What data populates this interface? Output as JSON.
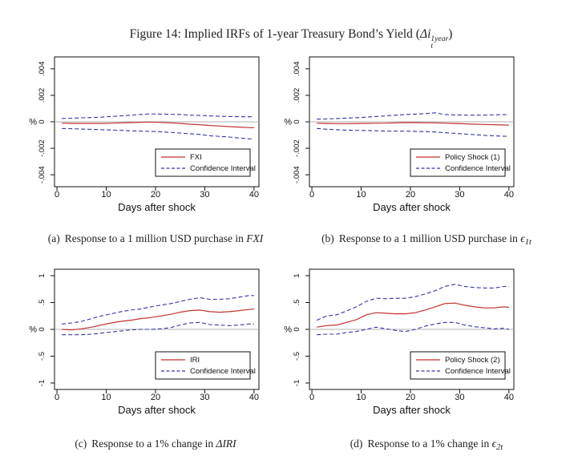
{
  "title": {
    "prefix": "Figure 14: Implied IRFs of 1-year Treasury Bond’s Yield (",
    "var": "Δi",
    "sup": "1year",
    "sub": "t",
    "suffix": ")"
  },
  "colors": {
    "irf": "#c23232",
    "ci": "#3434a8",
    "zero_line": "#b0b0b0",
    "frame": "#111111"
  },
  "captions": [
    {
      "tag": "(a)",
      "text": "Response to a 1 million USD purchase in",
      "math": "FXI",
      "math_sub": ""
    },
    {
      "tag": "(b)",
      "text": "Response to a 1 million USD purchase in",
      "math": "ϵ",
      "math_sub": "1t"
    },
    {
      "tag": "(c)",
      "text": "Response to a 1% change in",
      "math": "ΔIRI",
      "math_sub": ""
    },
    {
      "tag": "(d)",
      "text": "Response to a 1% change in",
      "math": "ϵ",
      "math_sub": "2t"
    }
  ],
  "chart_data": [
    {
      "id": "a",
      "type": "line",
      "xlabel": "Days after shock",
      "ytitle": "%",
      "xlim": [
        -0.5,
        41
      ],
      "ylim": [
        -0.0049,
        0.0049
      ],
      "xticks": [
        {
          "v": 0,
          "l": "0"
        },
        {
          "v": 10,
          "l": "10"
        },
        {
          "v": 20,
          "l": "20"
        },
        {
          "v": 30,
          "l": "30"
        },
        {
          "v": 40,
          "l": "40"
        }
      ],
      "yticks": [
        {
          "v": 0.004,
          "l": ".004"
        },
        {
          "v": 0.002,
          "l": ".002"
        },
        {
          "v": 0,
          "l": "0"
        },
        {
          "v": -0.002,
          "l": "-.002"
        },
        {
          "v": -0.004,
          "l": "-.004"
        }
      ],
      "zero_line": true,
      "x": [
        1,
        3,
        5,
        7,
        9,
        11,
        13,
        15,
        17,
        19,
        21,
        23,
        25,
        27,
        29,
        31,
        33,
        35,
        37,
        39,
        40
      ],
      "series": [
        {
          "name": "Confidence Interval",
          "role": "ci-upper",
          "style": "dashed",
          "color_key": "ci",
          "values": [
            0.00025,
            0.00027,
            0.0003,
            0.00032,
            0.00035,
            0.0004,
            0.00045,
            0.0005,
            0.00055,
            0.0006,
            0.00058,
            0.00057,
            0.00055,
            0.0005,
            0.00048,
            0.00045,
            0.00042,
            0.0004,
            0.00038,
            0.00038,
            0.0004
          ]
        },
        {
          "name": "Confidence Interval",
          "role": "ci-lower",
          "style": "dashed",
          "color_key": "ci",
          "values": [
            -0.0005,
            -0.00052,
            -0.00055,
            -0.00057,
            -0.0006,
            -0.00062,
            -0.00065,
            -0.00068,
            -0.0007,
            -0.00072,
            -0.00075,
            -0.0008,
            -0.00085,
            -0.0009,
            -0.00095,
            -0.00105,
            -0.0011,
            -0.00115,
            -0.00122,
            -0.00128,
            -0.0013
          ]
        },
        {
          "name": "FXI",
          "role": "irf",
          "style": "solid",
          "color_key": "irf",
          "values": [
            -0.0001,
            -0.00012,
            -0.00012,
            -0.00012,
            -0.00012,
            -0.0001,
            -8e-05,
            -6e-05,
            -4e-05,
            -2e-05,
            -4e-05,
            -8e-05,
            -0.00012,
            -0.00018,
            -0.00022,
            -0.00028,
            -0.00032,
            -0.00036,
            -0.0004,
            -0.00044,
            -0.00045
          ]
        }
      ],
      "legend": [
        {
          "label": "FXI",
          "style": "solid"
        },
        {
          "label": "Confidence Interval",
          "style": "dashed"
        }
      ]
    },
    {
      "id": "b",
      "type": "line",
      "xlabel": "Days after shock",
      "ytitle": "%",
      "xlim": [
        -0.5,
        41
      ],
      "ylim": [
        -0.0049,
        0.0049
      ],
      "xticks": [
        {
          "v": 0,
          "l": "0"
        },
        {
          "v": 10,
          "l": "10"
        },
        {
          "v": 20,
          "l": "20"
        },
        {
          "v": 30,
          "l": "30"
        },
        {
          "v": 40,
          "l": "40"
        }
      ],
      "yticks": [
        {
          "v": 0.004,
          "l": ".004"
        },
        {
          "v": 0.002,
          "l": ".002"
        },
        {
          "v": 0,
          "l": "0"
        },
        {
          "v": -0.002,
          "l": "-.002"
        },
        {
          "v": -0.004,
          "l": "-.004"
        }
      ],
      "zero_line": true,
      "x": [
        1,
        3,
        5,
        7,
        9,
        11,
        13,
        15,
        17,
        19,
        21,
        23,
        25,
        27,
        29,
        31,
        33,
        35,
        37,
        39,
        40
      ],
      "series": [
        {
          "name": "Confidence Interval",
          "role": "ci-upper",
          "style": "dashed",
          "color_key": "ci",
          "values": [
            0.0002,
            0.00022,
            0.00025,
            0.00028,
            0.00031,
            0.00035,
            0.0004,
            0.00045,
            0.0005,
            0.00055,
            0.00058,
            0.00062,
            0.00068,
            0.00055,
            0.00052,
            0.0005,
            0.0005,
            0.00051,
            0.00052,
            0.00054,
            0.00055
          ]
        },
        {
          "name": "Confidence Interval",
          "role": "ci-lower",
          "style": "dashed",
          "color_key": "ci",
          "values": [
            -0.0005,
            -0.00056,
            -0.0006,
            -0.00063,
            -0.00065,
            -0.00066,
            -0.00068,
            -0.0007,
            -0.0007,
            -0.00071,
            -0.00072,
            -0.00074,
            -0.00077,
            -0.00082,
            -0.00087,
            -0.00092,
            -0.00097,
            -0.00102,
            -0.00106,
            -0.00109,
            -0.0011
          ]
        },
        {
          "name": "Policy Shock (1)",
          "role": "irf",
          "style": "solid",
          "color_key": "irf",
          "values": [
            -0.0001,
            -0.00013,
            -0.00014,
            -0.00014,
            -0.00013,
            -0.00012,
            -0.00011,
            -0.0001,
            -8e-05,
            -6e-05,
            -6e-05,
            -7e-05,
            -8e-05,
            -0.0001,
            -0.00013,
            -0.00015,
            -0.00018,
            -0.0002,
            -0.00022,
            -0.00024,
            -0.00025
          ]
        }
      ],
      "legend": [
        {
          "label": "Policy Shock (1)",
          "style": "solid"
        },
        {
          "label": "Confidence Interval",
          "style": "dashed"
        }
      ]
    },
    {
      "id": "c",
      "type": "line",
      "xlabel": "Days after shock",
      "ytitle": "%",
      "xlim": [
        -0.5,
        41
      ],
      "ylim": [
        -1.12,
        1.12
      ],
      "xticks": [
        {
          "v": 0,
          "l": "0"
        },
        {
          "v": 10,
          "l": "10"
        },
        {
          "v": 20,
          "l": "20"
        },
        {
          "v": 30,
          "l": "30"
        },
        {
          "v": 40,
          "l": "40"
        }
      ],
      "yticks": [
        {
          "v": 1,
          "l": "1"
        },
        {
          "v": 0.5,
          "l": ".5"
        },
        {
          "v": 0,
          "l": "0"
        },
        {
          "v": -0.5,
          "l": "-.5"
        },
        {
          "v": -1,
          "l": "-1"
        }
      ],
      "zero_line": true,
      "x": [
        1,
        3,
        5,
        7,
        9,
        11,
        13,
        15,
        17,
        19,
        21,
        23,
        25,
        27,
        29,
        31,
        33,
        35,
        37,
        39,
        40
      ],
      "series": [
        {
          "name": "Confidence Interval",
          "role": "ci-upper",
          "style": "dashed",
          "color_key": "ci",
          "values": [
            0.1,
            0.12,
            0.15,
            0.2,
            0.25,
            0.29,
            0.33,
            0.36,
            0.38,
            0.42,
            0.45,
            0.48,
            0.52,
            0.56,
            0.59,
            0.56,
            0.56,
            0.57,
            0.6,
            0.63,
            0.63
          ]
        },
        {
          "name": "Confidence Interval",
          "role": "ci-lower",
          "style": "dashed",
          "color_key": "ci",
          "values": [
            -0.1,
            -0.1,
            -0.1,
            -0.09,
            -0.07,
            -0.05,
            -0.03,
            -0.01,
            0,
            0,
            0.01,
            0.03,
            0.08,
            0.12,
            0.13,
            0.09,
            0.08,
            0.07,
            0.08,
            0.1,
            0.1
          ]
        },
        {
          "name": "IRI",
          "role": "irf",
          "style": "solid",
          "color_key": "irf",
          "values": [
            0,
            -0.01,
            0.01,
            0.04,
            0.08,
            0.12,
            0.15,
            0.17,
            0.2,
            0.22,
            0.25,
            0.28,
            0.32,
            0.35,
            0.36,
            0.33,
            0.32,
            0.33,
            0.35,
            0.37,
            0.38
          ]
        }
      ],
      "legend": [
        {
          "label": "IRI",
          "style": "solid"
        },
        {
          "label": "Confidence Interval",
          "style": "dashed"
        }
      ]
    },
    {
      "id": "d",
      "type": "line",
      "xlabel": "Days after shock",
      "ytitle": "%",
      "xlim": [
        -0.5,
        41
      ],
      "ylim": [
        -1.12,
        1.12
      ],
      "xticks": [
        {
          "v": 0,
          "l": "0"
        },
        {
          "v": 10,
          "l": "10"
        },
        {
          "v": 20,
          "l": "20"
        },
        {
          "v": 30,
          "l": "30"
        },
        {
          "v": 40,
          "l": "40"
        }
      ],
      "yticks": [
        {
          "v": 1,
          "l": "1"
        },
        {
          "v": 0.5,
          "l": ".5"
        },
        {
          "v": 0,
          "l": "0"
        },
        {
          "v": -0.5,
          "l": "-.5"
        },
        {
          "v": -1,
          "l": "-1"
        }
      ],
      "zero_line": true,
      "x": [
        1,
        3,
        5,
        7,
        9,
        11,
        13,
        15,
        17,
        19,
        21,
        23,
        25,
        27,
        29,
        31,
        33,
        35,
        37,
        39,
        40
      ],
      "series": [
        {
          "name": "Confidence Interval",
          "role": "ci-upper",
          "style": "dashed",
          "color_key": "ci",
          "values": [
            0.17,
            0.25,
            0.27,
            0.34,
            0.42,
            0.52,
            0.58,
            0.57,
            0.58,
            0.58,
            0.61,
            0.66,
            0.72,
            0.8,
            0.84,
            0.8,
            0.78,
            0.77,
            0.77,
            0.8,
            0.8
          ]
        },
        {
          "name": "Confidence Interval",
          "role": "ci-lower",
          "style": "dashed",
          "color_key": "ci",
          "values": [
            -0.1,
            -0.09,
            -0.09,
            -0.06,
            -0.04,
            0,
            0.04,
            0.01,
            -0.02,
            -0.04,
            0,
            0.06,
            0.1,
            0.13,
            0.13,
            0.08,
            0.05,
            0.03,
            0.01,
            0.02,
            0
          ]
        },
        {
          "name": "Policy Shock (2)",
          "role": "irf",
          "style": "solid",
          "color_key": "irf",
          "values": [
            0.04,
            0.07,
            0.08,
            0.13,
            0.18,
            0.27,
            0.31,
            0.3,
            0.29,
            0.29,
            0.31,
            0.36,
            0.42,
            0.48,
            0.49,
            0.45,
            0.42,
            0.4,
            0.4,
            0.42,
            0.41
          ]
        }
      ],
      "legend": [
        {
          "label": "Policy Shock (2)",
          "style": "solid"
        },
        {
          "label": "Confidence Interval",
          "style": "dashed"
        }
      ]
    }
  ]
}
